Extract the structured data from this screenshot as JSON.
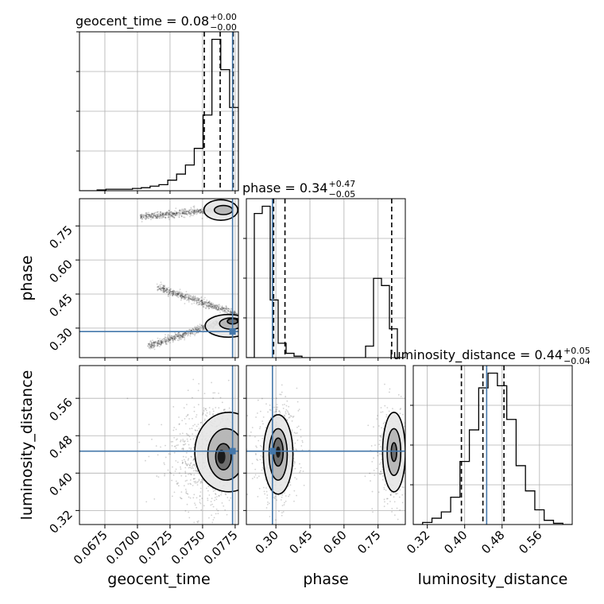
{
  "chart_data": {
    "type": "corner",
    "parameters": [
      {
        "name": "geocent_time",
        "range": [
          0.06555,
          0.07775
        ],
        "ticks": [
          0.0675,
          0.07,
          0.0725,
          0.075,
          0.0775
        ],
        "tick_labels": [
          "0.0675",
          "0.0700",
          "0.0725",
          "0.0750",
          "0.0775"
        ],
        "truth": 0.0773,
        "quantiles": [
          0.07513,
          0.07635,
          0.07735
        ],
        "title": {
          "base": "geocent_time = 0.08",
          "sup": "+0.00",
          "sub": "−0.00"
        }
      },
      {
        "name": "phase",
        "range": [
          0.17,
          0.87
        ],
        "ticks": [
          0.3,
          0.45,
          0.6,
          0.75
        ],
        "tick_labels": [
          "0.30",
          "0.45",
          "0.60",
          "0.75"
        ],
        "truth": 0.285,
        "quantiles": [
          0.29,
          0.34,
          0.81
        ],
        "title": {
          "base": "phase = 0.34",
          "sup": "+0.47",
          "sub": "−0.05"
        }
      },
      {
        "name": "luminosity_distance",
        "range": [
          0.29,
          0.63
        ],
        "ticks": [
          0.32,
          0.4,
          0.48,
          0.56
        ],
        "tick_labels": [
          "0.32",
          "0.40",
          "0.48",
          "0.56"
        ],
        "truth": 0.447,
        "quantiles": [
          0.393,
          0.439,
          0.484
        ],
        "title": {
          "base": "luminosity_distance = 0.44",
          "sup": "+0.05",
          "sub": "−0.04"
        }
      }
    ],
    "histograms": {
      "geocent_time": {
        "values": [
          0,
          0,
          0.5,
          1,
          1,
          1,
          1.5,
          2,
          3,
          4,
          7,
          11,
          17,
          28,
          50,
          100,
          80,
          55
        ]
      },
      "phase": {
        "values": [
          0,
          100,
          105,
          40,
          10,
          3,
          1,
          0,
          0,
          0,
          0,
          0,
          0,
          0,
          0,
          8,
          55,
          50,
          20,
          0
        ]
      },
      "luminosity_distance": {
        "values": [
          0,
          1,
          3,
          6,
          13,
          30,
          45,
          65,
          72,
          66,
          50,
          28,
          16,
          7,
          2,
          0.6,
          0
        ]
      }
    },
    "color_truth": "#4477aa",
    "color_contour": "#000000",
    "grid": true
  }
}
